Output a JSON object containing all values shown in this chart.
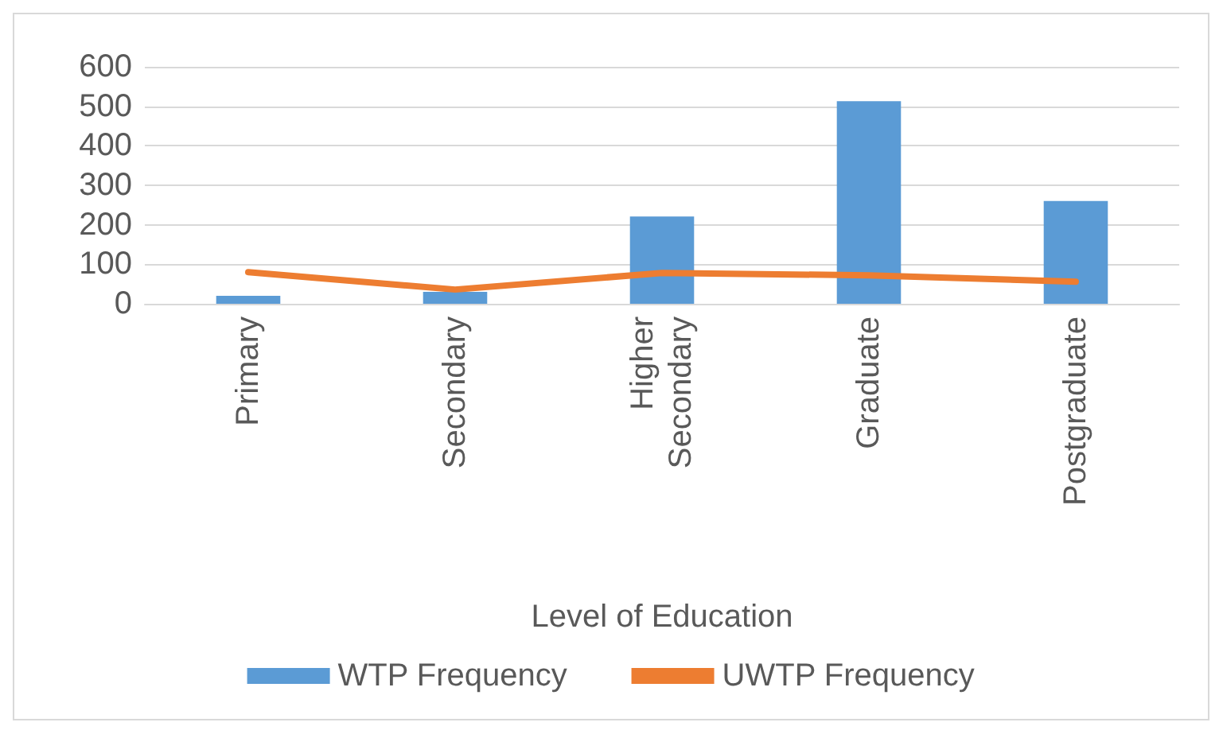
{
  "chart_data": {
    "type": "bar",
    "xlabel": "Level of Education",
    "categories": [
      "Primary",
      "Secondary",
      "Higher Secondary",
      "Graduate",
      "Postgraduate"
    ],
    "series": [
      {
        "name": "WTP Frequency",
        "color": "#5b9bd5",
        "values": [
          20,
          30,
          221,
          513,
          260
        ]
      },
      {
        "name": "UWTP Frequency",
        "type": "line",
        "color": "#ed7d31",
        "values": [
          80,
          36,
          78,
          72,
          56
        ]
      }
    ],
    "ylim": [
      0,
      600
    ],
    "yticks": [
      0,
      100,
      200,
      300,
      400,
      500,
      600
    ],
    "grid": "y",
    "legend": "bottom",
    "marker": "none"
  }
}
